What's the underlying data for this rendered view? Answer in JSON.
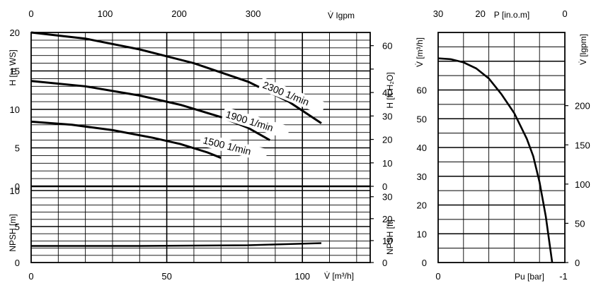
{
  "chart_data": [
    {
      "type": "line",
      "name": "pump-performance",
      "x_units": "m³/h",
      "xlim": [
        0,
        125
      ],
      "xticks": [
        "0",
        "50",
        "100"
      ],
      "xlabel_bottom": "V̇ [m³/h]",
      "x_top": {
        "label": "V̇ Igpm",
        "ticks": [
          "0",
          "100",
          "200",
          "300"
        ]
      },
      "head_panel": {
        "ylabel_left": "H [m WS]",
        "ylim": [
          0,
          20
        ],
        "yticks": [
          "0",
          "5",
          "10",
          "15",
          "20"
        ],
        "ylabel_right": "H [ft H₂O]",
        "yticks_right": [
          "0",
          "10",
          "20",
          "30",
          "40",
          "50",
          "60"
        ],
        "grid": true,
        "series": [
          {
            "name": "2300 1/min",
            "x": [
              0,
              20,
              40,
              60,
              80,
              95,
              107
            ],
            "y": [
              20,
              19.2,
              17.8,
              16.0,
              13.6,
              11.0,
              8.2
            ]
          },
          {
            "name": "1900 1/min",
            "x": [
              0,
              20,
              40,
              55,
              70,
              80,
              88
            ],
            "y": [
              13.7,
              13.0,
              11.8,
              10.6,
              9.0,
              7.6,
              6.0
            ]
          },
          {
            "name": "1500 1/min",
            "x": [
              0,
              15,
              30,
              45,
              55,
              65,
              70
            ],
            "y": [
              8.4,
              8.0,
              7.3,
              6.3,
              5.5,
              4.4,
              3.7
            ]
          }
        ]
      },
      "npsh_panel": {
        "ylabel_left": "NPSH [m]",
        "ylim": [
          0,
          10
        ],
        "yticks": [
          "0",
          "5",
          "10"
        ],
        "ylabel_right": "NPSH [ft]",
        "yticks_right": [
          "0",
          "10",
          "20",
          "30"
        ],
        "grid": true,
        "series": [
          {
            "name": "NPSH",
            "x": [
              0,
              40,
              80,
              107
            ],
            "y": [
              2.3,
              2.3,
              2.4,
              2.7
            ]
          }
        ]
      }
    },
    {
      "type": "line",
      "name": "vacuum-performance",
      "xlabel_bottom": "Pu [bar]",
      "xticks": [
        "0",
        "-1"
      ],
      "xlim": [
        0,
        -1
      ],
      "x_top": {
        "label": "P [in.o.m]",
        "ticks": [
          "30",
          "20",
          "0"
        ]
      },
      "ylabel_left": "V̇ [m³/h]",
      "ylim": [
        0,
        70
      ],
      "yticks": [
        "0",
        "10",
        "20",
        "30",
        "40",
        "50",
        "60"
      ],
      "ylabel_right": "V̇ [lgpm]",
      "yticks_right": [
        "0",
        "50",
        "100",
        "150",
        "200"
      ],
      "grid": true,
      "series": [
        {
          "name": "vacuum",
          "x": [
            0,
            -0.1,
            -0.2,
            -0.3,
            -0.4,
            -0.5,
            -0.6,
            -0.7,
            -0.75,
            -0.8,
            -0.85,
            -0.9
          ],
          "y": [
            71,
            70.7,
            69.6,
            67.5,
            64,
            58.5,
            52,
            43,
            37,
            28,
            16,
            0
          ]
        }
      ]
    }
  ]
}
